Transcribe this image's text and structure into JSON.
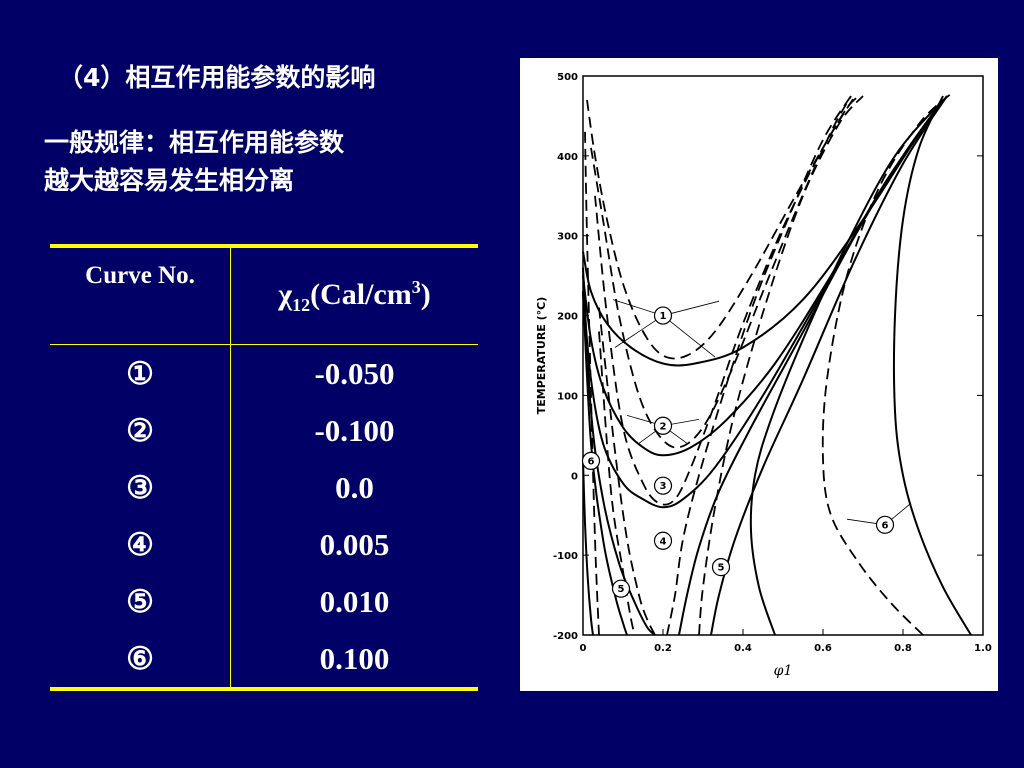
{
  "heading": "（4）相互作用能参数的影响",
  "rule": {
    "line1": "一般规律：相互作用能参数",
    "line2": "越大越容易发生相分离"
  },
  "table": {
    "col1_header": "Curve No.",
    "col2_header": {
      "symbol": "χ",
      "sub": "12",
      "unit_pre": "(Cal/cm",
      "sup": "3",
      "unit_post": ")"
    },
    "rows": [
      {
        "curve": "①",
        "value": "-0.050"
      },
      {
        "curve": "②",
        "value": "-0.100"
      },
      {
        "curve": "③",
        "value": "0.0"
      },
      {
        "curve": "④",
        "value": "0.005"
      },
      {
        "curve": "⑤",
        "value": "0.010"
      },
      {
        "curve": "⑥",
        "value": "0.100"
      }
    ]
  },
  "chart_data": {
    "type": "line",
    "xlabel": "φ1",
    "ylabel": "TEMPERATURE (°C)",
    "xlim": [
      0,
      1.0
    ],
    "ylim": [
      -200,
      500
    ],
    "xticks": [
      "0",
      "0.2",
      "0.4",
      "0.6",
      "0.8",
      "1.0"
    ],
    "yticks": [
      "500",
      "400",
      "300",
      "200",
      "100",
      "0",
      "-100",
      "-200"
    ],
    "grid": false,
    "colors": {
      "solid": "#000000",
      "dashed": "#000000"
    },
    "series": [
      {
        "curve": "1",
        "style": "solid",
        "x": [
          0.0,
          0.02,
          0.06,
          0.12,
          0.2,
          0.28,
          0.4,
          0.55,
          0.7,
          0.83,
          0.91
        ],
        "y": [
          280,
          230,
          190,
          160,
          140,
          140,
          160,
          220,
          320,
          420,
          475
        ]
      },
      {
        "curve": "1",
        "style": "dashed",
        "x": [
          0.01,
          0.03,
          0.06,
          0.1,
          0.15,
          0.2,
          0.26,
          0.33,
          0.42,
          0.52,
          0.6,
          0.66,
          0.69
        ],
        "y": [
          470,
          400,
          320,
          240,
          180,
          150,
          150,
          180,
          250,
          340,
          410,
          460,
          475
        ]
      },
      {
        "curve": "2",
        "style": "solid",
        "x": [
          0.0,
          0.02,
          0.05,
          0.1,
          0.15,
          0.2,
          0.27,
          0.36,
          0.48,
          0.62,
          0.76,
          0.9
        ],
        "y": [
          250,
          170,
          110,
          60,
          35,
          25,
          35,
          70,
          140,
          250,
          370,
          470
        ]
      },
      {
        "curve": "2",
        "style": "dashed",
        "x": [
          0.02,
          0.05,
          0.09,
          0.14,
          0.19,
          0.24,
          0.3,
          0.37,
          0.45,
          0.54,
          0.62,
          0.67
        ],
        "y": [
          410,
          320,
          200,
          100,
          50,
          35,
          60,
          130,
          230,
          340,
          430,
          475
        ]
      },
      {
        "curve": "3",
        "style": "solid",
        "x": [
          0.0,
          0.02,
          0.05,
          0.1,
          0.15,
          0.2,
          0.25,
          0.33,
          0.45,
          0.6,
          0.75,
          0.9
        ],
        "y": [
          230,
          120,
          40,
          -10,
          -30,
          -40,
          -30,
          10,
          100,
          230,
          360,
          470
        ]
      },
      {
        "curve": "3",
        "style": "dashed",
        "x": [
          0.03,
          0.06,
          0.1,
          0.15,
          0.19,
          0.23,
          0.27,
          0.33,
          0.4,
          0.5,
          0.6,
          0.68
        ],
        "y": [
          350,
          200,
          60,
          -10,
          -35,
          -30,
          10,
          90,
          190,
          310,
          410,
          475
        ]
      },
      {
        "curve": "4",
        "style": "solid",
        "x": [
          0.0,
          0.02,
          0.05,
          0.09,
          0.13,
          0.16,
          0.18
        ],
        "y": [
          260,
          80,
          -30,
          -110,
          -160,
          -190,
          -200
        ]
      },
      {
        "curve": "4",
        "style": "solid",
        "x": [
          0.24,
          0.26,
          0.29,
          0.34,
          0.42,
          0.54,
          0.68,
          0.8,
          0.9
        ],
        "y": [
          -200,
          -150,
          -90,
          -20,
          60,
          170,
          300,
          400,
          470
        ]
      },
      {
        "curve": "4",
        "style": "dashed",
        "x": [
          0.04,
          0.08,
          0.11,
          0.14,
          0.16,
          0.18
        ],
        "y": [
          210,
          30,
          -80,
          -150,
          -180,
          -200
        ]
      },
      {
        "curve": "4",
        "style": "dashed",
        "x": [
          0.21,
          0.23,
          0.25,
          0.29,
          0.35,
          0.43,
          0.52,
          0.6,
          0.67
        ],
        "y": [
          -200,
          -150,
          -80,
          0,
          100,
          220,
          330,
          420,
          475
        ]
      },
      {
        "curve": "5",
        "style": "solid",
        "x": [
          0.0,
          0.02,
          0.05,
          0.08,
          0.1,
          0.11
        ],
        "y": [
          230,
          40,
          -80,
          -150,
          -185,
          -200
        ]
      },
      {
        "curve": "5",
        "style": "solid",
        "x": [
          0.32,
          0.34,
          0.38,
          0.45,
          0.55,
          0.68,
          0.8,
          0.91
        ],
        "y": [
          -200,
          -150,
          -80,
          10,
          120,
          270,
          390,
          475
        ]
      },
      {
        "curve": "5",
        "style": "dashed",
        "x": [
          0.04,
          0.07,
          0.1,
          0.12,
          0.13
        ],
        "y": [
          180,
          -20,
          -120,
          -180,
          -200
        ]
      },
      {
        "curve": "5",
        "style": "dashed",
        "x": [
          0.29,
          0.3,
          0.33,
          0.38,
          0.46,
          0.55,
          0.64,
          0.7
        ],
        "y": [
          -200,
          -140,
          -40,
          80,
          220,
          350,
          440,
          475
        ]
      },
      {
        "curve": "6",
        "style": "solid",
        "x": [
          0.0,
          0.005,
          0.012,
          0.02,
          0.025
        ],
        "y": [
          20,
          -60,
          -130,
          -180,
          -200
        ]
      },
      {
        "curve": "6",
        "style": "solid",
        "x": [
          0.48,
          0.44,
          0.42,
          0.43,
          0.47,
          0.55,
          0.66,
          0.78,
          0.9
        ],
        "y": [
          -200,
          -140,
          -70,
          0,
          70,
          170,
          290,
          400,
          470
        ]
      },
      {
        "curve": "6",
        "style": "solid",
        "x": [
          0.97,
          0.9,
          0.84,
          0.8,
          0.78,
          0.78,
          0.8,
          0.84,
          0.9
        ],
        "y": [
          -200,
          -140,
          -70,
          0,
          80,
          200,
          320,
          410,
          475
        ]
      },
      {
        "curve": "6",
        "style": "dashed",
        "x": [
          0.005,
          0.01,
          0.02,
          0.03,
          0.04
        ],
        "y": [
          430,
          300,
          100,
          -80,
          -200
        ]
      },
      {
        "curve": "6",
        "style": "dashed",
        "x": [
          0.85,
          0.77,
          0.69,
          0.62,
          0.6,
          0.61,
          0.66,
          0.74,
          0.84,
          0.92
        ],
        "y": [
          -200,
          -160,
          -110,
          -50,
          20,
          120,
          250,
          360,
          440,
          478
        ]
      }
    ],
    "annotations": [
      {
        "label": "1",
        "x": 0.2,
        "y": 200
      },
      {
        "label": "2",
        "x": 0.2,
        "y": 62
      },
      {
        "label": "3",
        "x": 0.2,
        "y": -13
      },
      {
        "label": "4",
        "x": 0.2,
        "y": -82
      },
      {
        "label": "5",
        "x": 0.345,
        "y": -115
      },
      {
        "label": "5",
        "x": 0.095,
        "y": -142
      },
      {
        "label": "6",
        "x": 0.02,
        "y": 18
      },
      {
        "label": "6",
        "x": 0.755,
        "y": -62
      }
    ]
  }
}
